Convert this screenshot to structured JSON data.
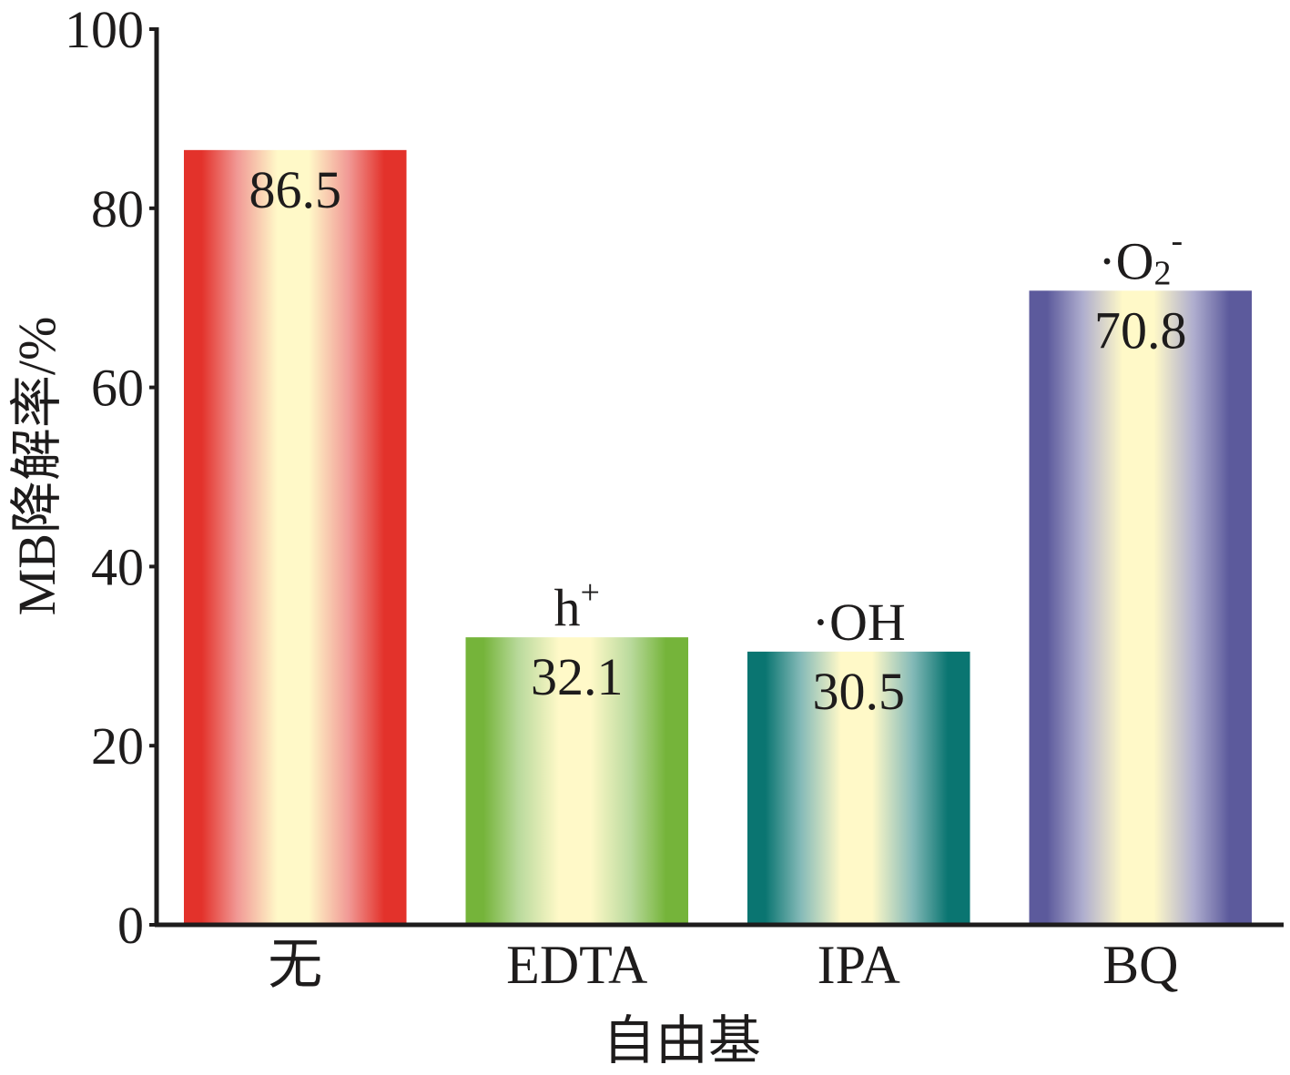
{
  "chart_data": {
    "type": "bar",
    "xlabel": "自由基",
    "ylabel": "MB降解率/%",
    "categories": [
      "无",
      "EDTA",
      "IPA",
      "BQ"
    ],
    "values": [
      86.5,
      32.1,
      30.5,
      70.8
    ],
    "annotations": [
      null,
      {
        "base": "h",
        "sup": "+"
      },
      {
        "base": "·OH"
      },
      {
        "base": "·O",
        "sub": "2",
        "sup": "-"
      }
    ],
    "ylim": [
      0,
      100
    ],
    "yticks": [
      0,
      20,
      40,
      60,
      80,
      100
    ],
    "grid": false,
    "legend": false,
    "colors": [
      "#e3322b",
      "#75b43a",
      "#0a7571",
      "#5c5a9c"
    ],
    "highlight_color": "#fff9c8"
  }
}
